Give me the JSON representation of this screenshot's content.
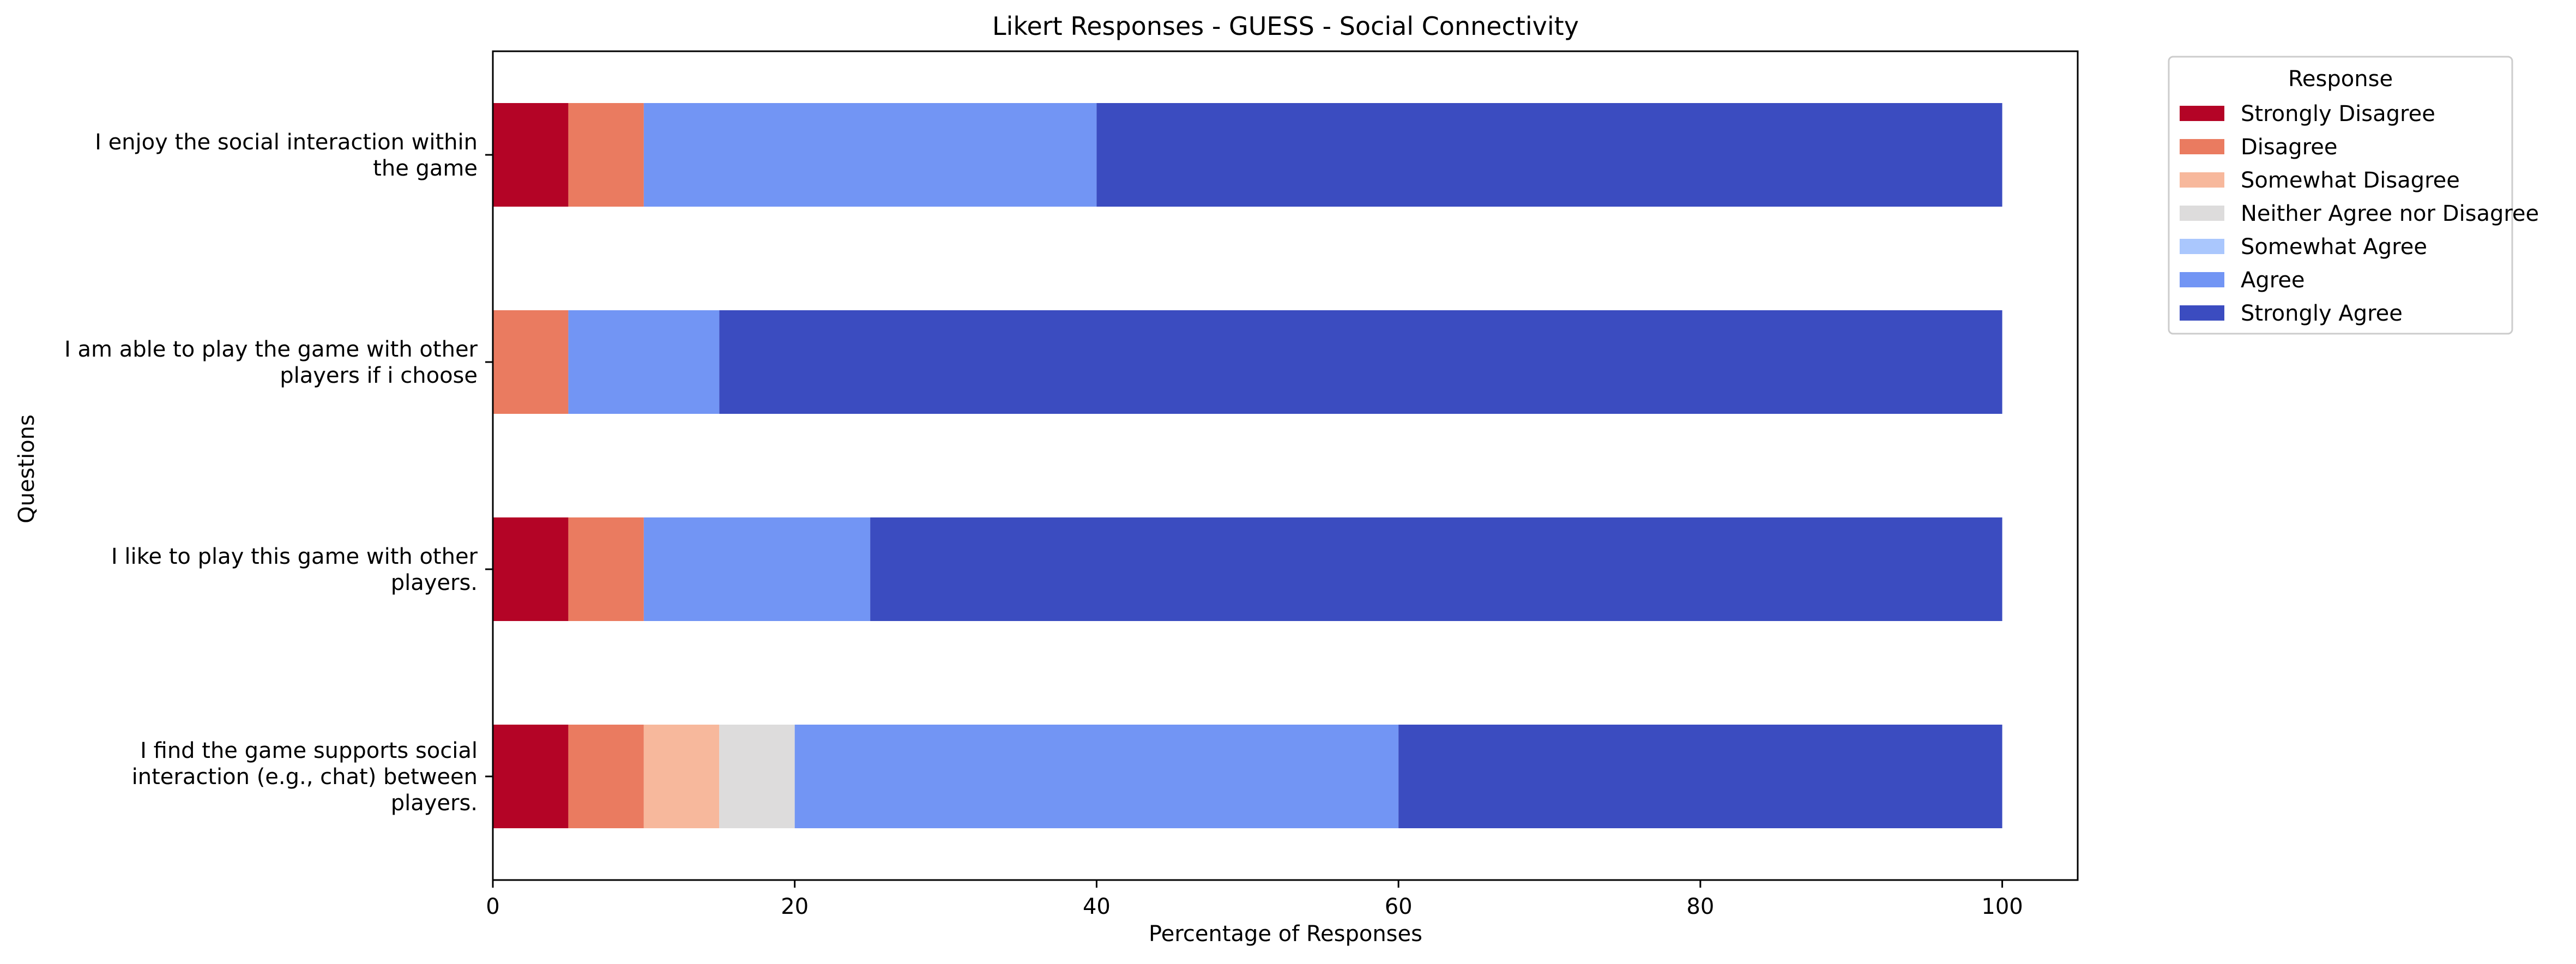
{
  "chart_data": {
    "type": "bar",
    "orientation": "horizontal",
    "stacked": true,
    "title": "Likert Responses - GUESS - Social Connectivity",
    "xlabel": "Percentage of Responses",
    "ylabel": "Questions",
    "xlim": [
      0,
      105
    ],
    "xticks": [
      0,
      20,
      40,
      60,
      80,
      100
    ],
    "grid": false,
    "legend_position": "outside-top-right",
    "legend_title": "Response",
    "categories": [
      [
        "I enjoy the social interaction within",
        "the game"
      ],
      [
        "I am able to play the game with other",
        "players if i choose"
      ],
      [
        "I like to play this game with other",
        "players."
      ],
      [
        "I find the game supports social",
        "interaction (e.g., chat) between",
        "players."
      ]
    ],
    "series": [
      {
        "name": "Strongly Disagree",
        "color": "#b40426",
        "values": [
          5,
          0,
          5,
          5
        ]
      },
      {
        "name": "Disagree",
        "color": "#ea7b60",
        "values": [
          5,
          5,
          5,
          5
        ]
      },
      {
        "name": "Somewhat Disagree",
        "color": "#f7b89c",
        "values": [
          0,
          0,
          0,
          5
        ]
      },
      {
        "name": "Neither Agree nor Disagree",
        "color": "#dddcdc",
        "values": [
          0,
          0,
          0,
          5
        ]
      },
      {
        "name": "Somewhat Agree",
        "color": "#aac7fd",
        "values": [
          0,
          0,
          0,
          0
        ]
      },
      {
        "name": "Agree",
        "color": "#7295f4",
        "values": [
          30,
          10,
          15,
          40
        ]
      },
      {
        "name": "Strongly Agree",
        "color": "#3b4cc0",
        "values": [
          60,
          85,
          75,
          40
        ]
      }
    ]
  }
}
